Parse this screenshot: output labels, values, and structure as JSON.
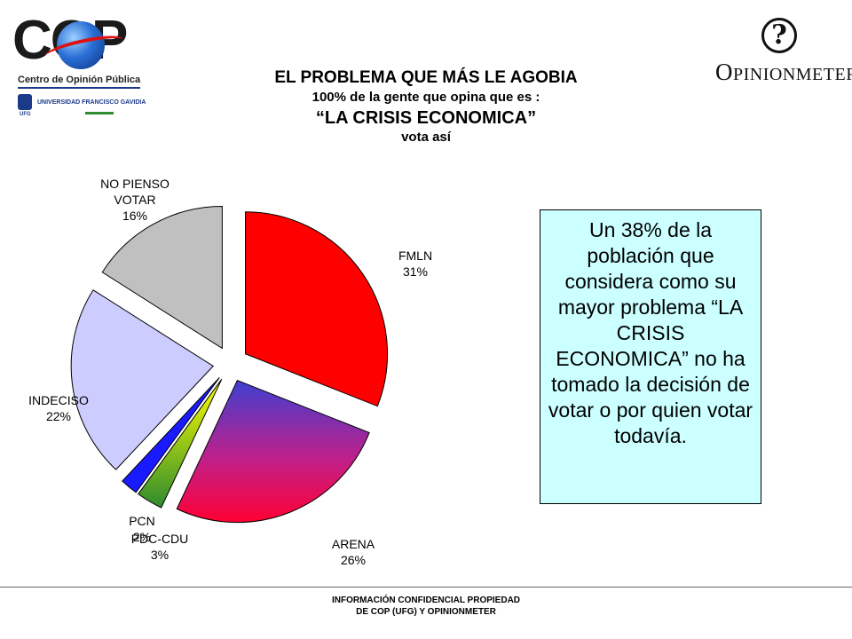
{
  "logos": {
    "cop_letters": "COP",
    "cop_caption": "Centro de Opinión Pública",
    "ufg_name": "UNIVERSIDAD FRANCISCO GAVIDIA",
    "ufg_abbr": "UFG",
    "opinionmeter_mark": "?",
    "opinionmeter_cap": "O",
    "opinionmeter_rest": "PINIONMETER"
  },
  "header": {
    "title": "EL PROBLEMA QUE MÁS LE AGOBIA",
    "subtitle": "100% de la gente que opina que es :",
    "quote": "“LA CRISIS ECONOMICA”",
    "tagline": "vota así"
  },
  "chart_data": {
    "type": "pie",
    "title": "",
    "slices": [
      {
        "label": "FMLN",
        "value": 31,
        "value_label": "31%",
        "color": "#ff0000",
        "exploded": true
      },
      {
        "label": "ARENA",
        "value": 26,
        "value_label": "26%",
        "color": "#ff0033",
        "color_top": "#3f3fd0",
        "exploded": true
      },
      {
        "label": "PDC-CDU",
        "value": 3,
        "value_label": "3%",
        "color": "#2e8b2e",
        "color_top": "#ffff00",
        "exploded": true
      },
      {
        "label": "PCN",
        "value": 2,
        "value_label": "2%",
        "color": "#1a1aff",
        "exploded": true
      },
      {
        "label": "INDECISO",
        "value": 22,
        "value_label": "22%",
        "color": "#ccccff",
        "exploded": true
      },
      {
        "label": "NO PIENSO VOTAR",
        "label_lines": [
          "NO PIENSO",
          "VOTAR"
        ],
        "value": 16,
        "value_label": "16%",
        "color": "#c0c0c0",
        "exploded": true
      }
    ]
  },
  "note": {
    "text": "Un 38% de la población que considera como su mayor problema “LA CRISIS ECONOMICA” no ha tomado la decisión de votar o por quien votar todavía."
  },
  "footer": {
    "line1": "INFORMACIÓN CONFIDENCIAL PROPIEDAD",
    "line2": "DE COP (UFG) Y OPINIONMETER"
  }
}
